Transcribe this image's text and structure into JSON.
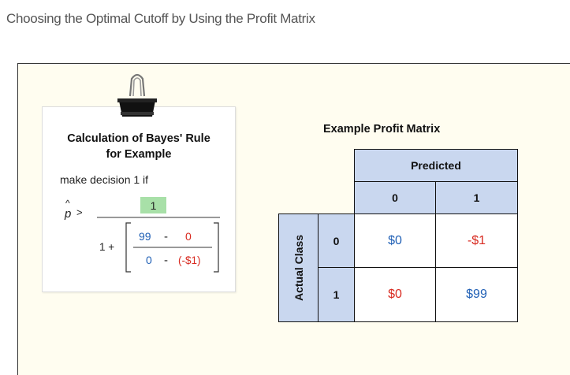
{
  "page": {
    "title": "Choosing the Optimal Cutoff by Using the Profit Matrix"
  },
  "note_card": {
    "heading_line1": "Calculation of Bayes' Rule",
    "heading_line2": "for Example",
    "decision_text": "make decision 1 if",
    "formula": {
      "p_hat": "p",
      "hat_mark": "^",
      "gt": ">",
      "numerator": "1",
      "one_plus": "1 +",
      "inner_num_a": "99",
      "inner_num_op": "-",
      "inner_num_b": "0",
      "inner_den_a": "0",
      "inner_den_op": "-",
      "inner_den_b": "(-$1)"
    }
  },
  "profit_matrix": {
    "title": "Example Profit Matrix",
    "predicted_label": "Predicted",
    "actual_label": "Actual Class",
    "predicted_classes": [
      "0",
      "1"
    ],
    "actual_classes": [
      "0",
      "1"
    ],
    "cells": [
      [
        "$0",
        "-$1"
      ],
      [
        "$0",
        "$99"
      ]
    ]
  },
  "colors": {
    "header_fill": "#c9d7ef",
    "slide_background": "#fffdf0",
    "highlight_green": "#a8e0a8",
    "value_blue": "#1f5fb5",
    "value_red": "#d82a20"
  },
  "icons": {
    "clip": "binder-clip-icon"
  }
}
